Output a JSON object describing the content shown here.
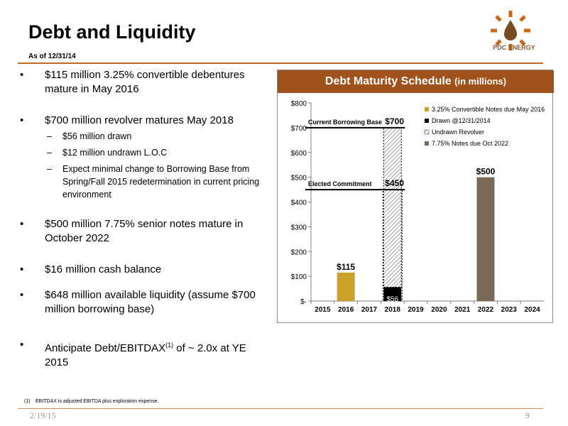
{
  "slide": {
    "title": "Debt and Liquidity",
    "subtitle": "As of 12/31/14",
    "logo_text": "PDC ENERGY",
    "date": "2/19/15",
    "page_number": "9"
  },
  "bullets": [
    {
      "text": "$115 million 3.25% convertible debentures mature in May 2016"
    },
    {
      "text": "$700 million revolver matures May 2018",
      "sub": [
        "$56 million drawn",
        "$12 million undrawn L.O.C",
        "Expect minimal change to Borrowing Base from Spring/Fall 2015 redetermination in current pricing environment"
      ]
    },
    {
      "text": "$500 million 7.75% senior notes mature in October 2022"
    },
    {
      "text": "$16 million cash balance"
    },
    {
      "text": "$648 million available liquidity (assume $700 million borrowing base)"
    },
    {
      "text_before": "Anticipate Debt/EBITDAX",
      "sup": "(1)",
      "text_after": " of ~ 2.0x at YE 2015"
    }
  ],
  "footnote": {
    "num": "(1)",
    "text": "EBITDAX is adjusted EBITDA plus exploration expense."
  },
  "chart_header": {
    "title": "Debt Maturity Schedule",
    "unit": "(in millions)"
  },
  "colors": {
    "accent": "#c8661b",
    "header": "#a0521d",
    "convertible": "#c9a227",
    "drawn": "#000000",
    "notes": "#7a6a58"
  },
  "chart_data": {
    "type": "bar",
    "categories": [
      "2015",
      "2016",
      "2017",
      "2018",
      "2019",
      "2020",
      "2021",
      "2022",
      "2023",
      "2024"
    ],
    "ylim": [
      0,
      800
    ],
    "ytick_values": [
      0,
      100,
      200,
      300,
      400,
      500,
      600,
      700,
      800
    ],
    "ytick_labels": [
      "$-",
      "$100",
      "$200",
      "$300",
      "$400",
      "$500",
      "$600",
      "$700",
      "$800"
    ],
    "series": [
      {
        "name": "3.25% Convertible Notes due May 2016",
        "values": [
          0,
          115,
          0,
          0,
          0,
          0,
          0,
          0,
          0,
          0
        ],
        "color": "#c9a227",
        "pattern": "solid"
      },
      {
        "name": "Drawn @12/31/2014",
        "values": [
          0,
          0,
          0,
          56,
          0,
          0,
          0,
          0,
          0,
          0
        ],
        "color": "#000000",
        "pattern": "solid"
      },
      {
        "name": "Undrawn Revolver",
        "values": [
          0,
          0,
          0,
          644,
          0,
          0,
          0,
          0,
          0,
          0
        ],
        "color": "#000000",
        "pattern": "hatch"
      },
      {
        "name": "7.75% Notes due Oct 2022",
        "values": [
          0,
          0,
          0,
          0,
          0,
          0,
          0,
          500,
          0,
          0
        ],
        "color": "#7a6a58",
        "pattern": "solid"
      }
    ],
    "data_labels": [
      {
        "category": "2016",
        "value": 115,
        "text": "$115"
      },
      {
        "category": "2018",
        "value": 56,
        "text": "$56"
      },
      {
        "category": "2022",
        "value": 500,
        "text": "$500"
      }
    ],
    "reference_lines": [
      {
        "value": 700,
        "label": "Current Borrowing Base",
        "value_label": "$700"
      },
      {
        "value": 450,
        "label": "Elected Commitment",
        "value_label": "$450"
      }
    ],
    "legend_position": "top-right",
    "grid": false
  }
}
